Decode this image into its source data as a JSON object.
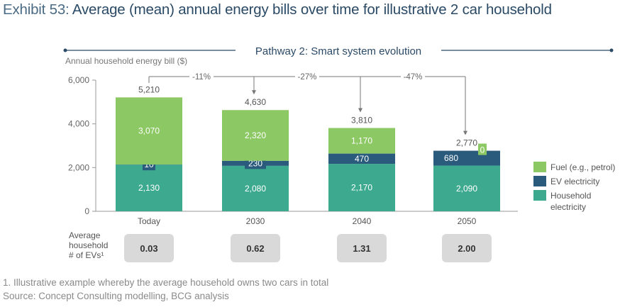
{
  "title_prefix": "Exhibit 53:",
  "title": "Average (mean) annual energy bills over time for illustrative 2 car household",
  "footnote": "1. Illustrative example whereby the average household owns two cars in total",
  "source": "Source: Concept Consulting modelling, BCG analysis",
  "colors": {
    "fuel": "#8cc864",
    "ev": "#2a5b7c",
    "household": "#3daa8f",
    "text": "#555555"
  },
  "chart_data": {
    "type": "bar",
    "stacked": true,
    "title": "Pathway 2: Smart system evolution",
    "ylabel": "Annual household energy bill ($)",
    "ylim": [
      0,
      6000
    ],
    "yticks": [
      {
        "v": 0,
        "label": "0"
      },
      {
        "v": 2000,
        "label": "2,000"
      },
      {
        "v": 4000,
        "label": "4,000"
      },
      {
        "v": 6000,
        "label": "6,000"
      }
    ],
    "categories": [
      "Today",
      "2030",
      "2040",
      "2050"
    ],
    "series": [
      {
        "name": "Household electricity",
        "values": [
          2130,
          2080,
          2170,
          2090
        ],
        "labels": [
          "2,130",
          "2,080",
          "2,170",
          "2,090"
        ]
      },
      {
        "name": "EV electricity",
        "values": [
          10,
          230,
          470,
          680
        ],
        "labels": [
          "10",
          "230",
          "470",
          "680"
        ]
      },
      {
        "name": "Fuel (e.g., petrol)",
        "values": [
          3070,
          2320,
          1170,
          0
        ],
        "labels": [
          "3,070",
          "2,320",
          "1,170",
          "0"
        ]
      }
    ],
    "totals": [
      "5,210",
      "4,630",
      "3,810",
      "2,770"
    ],
    "changes": [
      "-11%",
      "-27%",
      "-47%"
    ],
    "legend": [
      "Fuel (e.g., petrol)",
      "EV electricity",
      "Household electricity"
    ],
    "legend_placement": "right",
    "ev_row_label": [
      "Average",
      "household",
      "# of EVs¹"
    ],
    "ev_counts": [
      "0.03",
      "0.62",
      "1.31",
      "2.00"
    ]
  }
}
